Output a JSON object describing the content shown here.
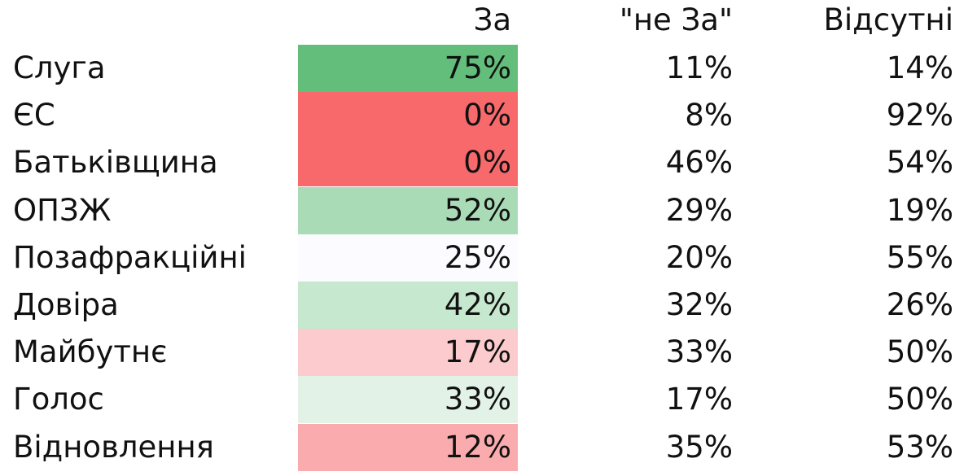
{
  "table": {
    "headers": [
      "За",
      "\"не За\"",
      "Відсутні"
    ],
    "rows": [
      {
        "party": "Слуга",
        "cells": [
          "75%",
          "11%",
          "14%"
        ],
        "color": "#63be7b"
      },
      {
        "party": "ЄС",
        "cells": [
          "0%",
          "8%",
          "92%"
        ],
        "color": "#f8696b"
      },
      {
        "party": "Батьківщина",
        "cells": [
          "0%",
          "46%",
          "54%"
        ],
        "color": "#f8696b"
      },
      {
        "party": "ОПЗЖ",
        "cells": [
          "52%",
          "29%",
          "19%"
        ],
        "color": "#a9dcb6"
      },
      {
        "party": "Позафракційні",
        "cells": [
          "25%",
          "20%",
          "55%"
        ],
        "color": "#fcfbff"
      },
      {
        "party": "Довіра",
        "cells": [
          "42%",
          "32%",
          "26%"
        ],
        "color": "#c6e8cf"
      },
      {
        "party": "Майбутнє",
        "cells": [
          "17%",
          "33%",
          "50%"
        ],
        "color": "#fbcbcd"
      },
      {
        "party": "Голос",
        "cells": [
          "33%",
          "17%",
          "50%"
        ],
        "color": "#e3f2e7"
      },
      {
        "party": "Відновлення",
        "cells": [
          "12%",
          "35%",
          "53%"
        ],
        "color": "#f9abad"
      }
    ]
  }
}
